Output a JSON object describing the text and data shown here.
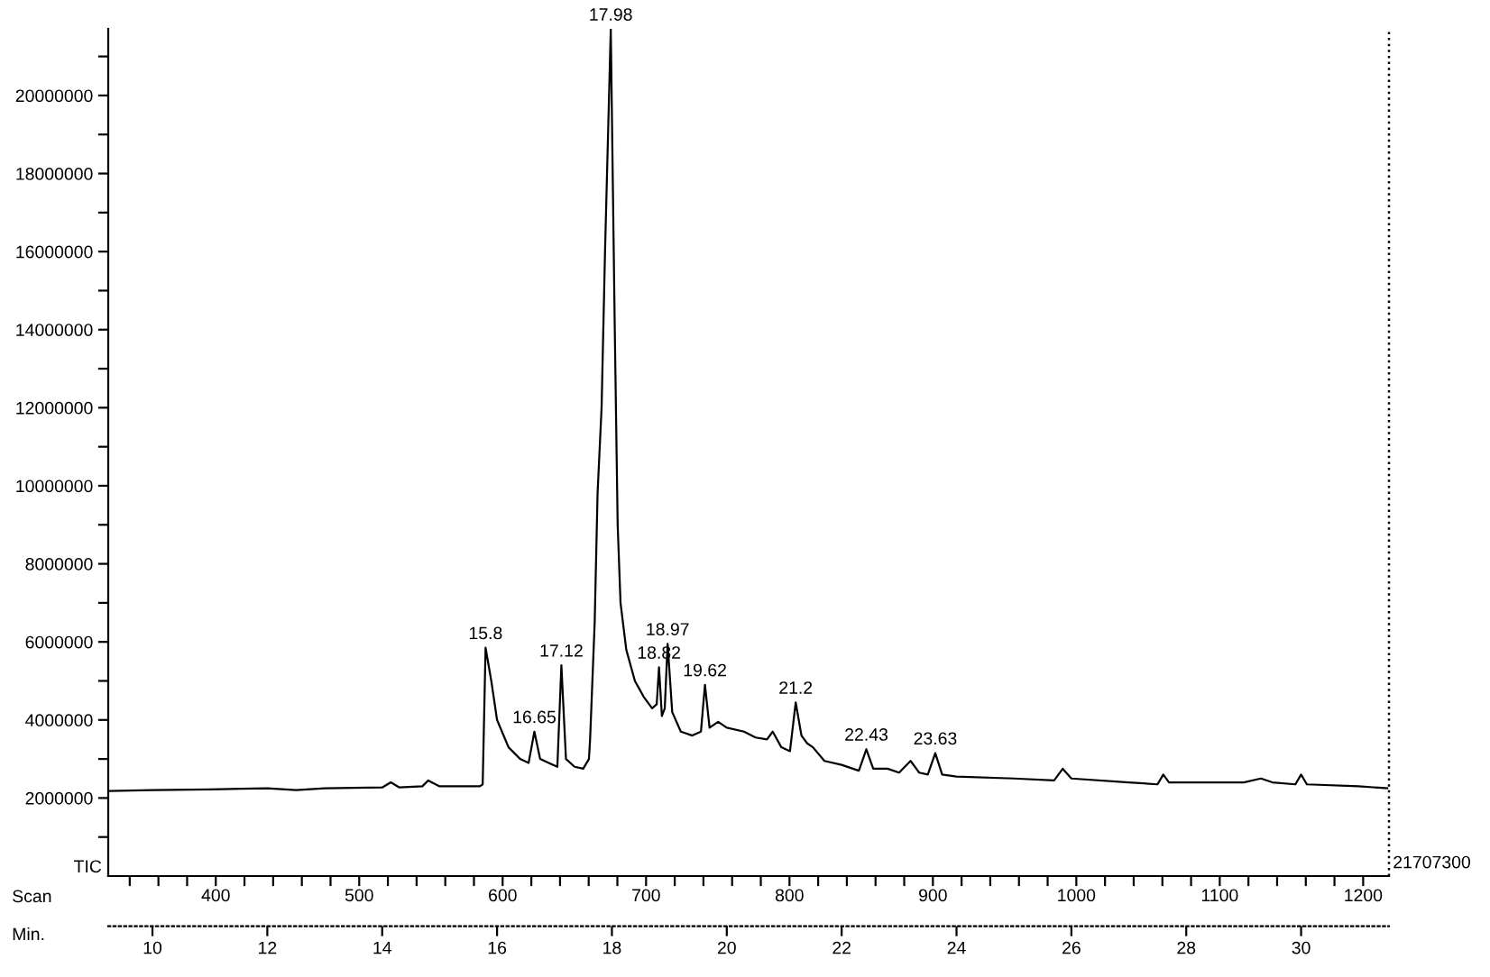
{
  "chart_data": {
    "type": "line",
    "ylabel": "TIC",
    "xlabel": "Min.",
    "x2label": "Scan",
    "x": [
      9.25,
      10,
      11,
      12,
      12.5,
      13,
      14,
      14.15,
      14.3,
      14.7,
      14.8,
      15,
      15.7,
      15.75,
      15.8,
      15.9,
      16.0,
      16.2,
      16.4,
      16.55,
      16.65,
      16.75,
      16.9,
      17.05,
      17.12,
      17.2,
      17.35,
      17.5,
      17.6,
      17.62,
      17.7,
      17.75,
      17.82,
      17.88,
      17.98,
      18.05,
      18.1,
      18.15,
      18.25,
      18.4,
      18.55,
      18.7,
      18.78,
      18.82,
      18.87,
      18.92,
      18.97,
      19.05,
      19.2,
      19.4,
      19.55,
      19.62,
      19.7,
      19.85,
      20.0,
      20.3,
      20.5,
      20.7,
      20.8,
      20.95,
      21.1,
      21.2,
      21.3,
      21.4,
      21.5,
      21.7,
      22.0,
      22.3,
      22.43,
      22.55,
      22.8,
      23.0,
      23.2,
      23.35,
      23.5,
      23.63,
      23.75,
      24.0,
      25.0,
      25.7,
      25.85,
      26.0,
      27.0,
      27.5,
      27.6,
      27.7,
      29.0,
      29.3,
      29.5,
      29.9,
      30.0,
      30.1,
      31.0,
      31.5
    ],
    "series": [
      {
        "color": "#000000",
        "values": [
          2180000,
          2200000,
          2220000,
          2250000,
          2200000,
          2250000,
          2270000,
          2400000,
          2270000,
          2300000,
          2450000,
          2300000,
          2300000,
          2350000,
          5850000,
          5000000,
          4000000,
          3300000,
          3000000,
          2900000,
          3700000,
          3000000,
          2900000,
          2800000,
          5400000,
          3000000,
          2800000,
          2750000,
          3000000,
          3500000,
          6500000,
          9800000,
          12000000,
          16000000,
          21700000,
          14000000,
          9000000,
          7000000,
          5800000,
          5000000,
          4600000,
          4300000,
          4400000,
          5350000,
          4100000,
          4300000,
          5950000,
          4200000,
          3700000,
          3600000,
          3700000,
          4900000,
          3800000,
          3950000,
          3800000,
          3700000,
          3550000,
          3500000,
          3700000,
          3300000,
          3200000,
          4450000,
          3600000,
          3400000,
          3300000,
          2950000,
          2850000,
          2700000,
          3250000,
          2750000,
          2750000,
          2650000,
          2950000,
          2650000,
          2600000,
          3150000,
          2600000,
          2550000,
          2500000,
          2450000,
          2750000,
          2500000,
          2400000,
          2350000,
          2600000,
          2400000,
          2400000,
          2500000,
          2400000,
          2350000,
          2600000,
          2350000,
          2300000,
          2250000
        ]
      }
    ],
    "xlim": [
      9.23,
      31.53
    ],
    "xticks": [
      10,
      12,
      14,
      16,
      18,
      20,
      22,
      24,
      26,
      28,
      30
    ],
    "x2lim": [
      325,
      1218
    ],
    "x2ticks": [
      {
        "value": 340,
        "label": null
      },
      {
        "value": 360,
        "label": null
      },
      {
        "value": 380,
        "label": null
      },
      400,
      {
        "value": 420,
        "label": null
      },
      {
        "value": 440,
        "label": null
      },
      {
        "value": 460,
        "label": null
      },
      {
        "value": 480,
        "label": null
      },
      500,
      {
        "value": 520,
        "label": null
      },
      {
        "value": 540,
        "label": null
      },
      {
        "value": 560,
        "label": null
      },
      {
        "value": 580,
        "label": null
      },
      600,
      {
        "value": 620,
        "label": null
      },
      {
        "value": 640,
        "label": null
      },
      {
        "value": 660,
        "label": null
      },
      {
        "value": 680,
        "label": null
      },
      700,
      {
        "value": 720,
        "label": null
      },
      {
        "value": 740,
        "label": null
      },
      {
        "value": 760,
        "label": null
      },
      {
        "value": 780,
        "label": null
      },
      800,
      {
        "value": 820,
        "label": null
      },
      {
        "value": 840,
        "label": null
      },
      {
        "value": 860,
        "label": null
      },
      {
        "value": 880,
        "label": null
      },
      900,
      {
        "value": 920,
        "label": null
      },
      {
        "value": 940,
        "label": null
      },
      {
        "value": 960,
        "label": null
      },
      {
        "value": 980,
        "label": null
      },
      1000,
      {
        "value": 1020,
        "label": null
      },
      {
        "value": 1040,
        "label": null
      },
      {
        "value": 1060,
        "label": null
      },
      {
        "value": 1080,
        "label": null
      },
      1100,
      {
        "value": 1120,
        "label": null
      },
      {
        "value": 1140,
        "label": null
      },
      {
        "value": 1160,
        "label": null
      },
      {
        "value": 1180,
        "label": null
      },
      1200
    ],
    "ylim": [
      0,
      21707300
    ],
    "yticks": [
      {
        "value": 1000000,
        "label": null
      },
      2000000,
      {
        "value": 3000000,
        "label": null
      },
      4000000,
      {
        "value": 5000000,
        "label": null
      },
      6000000,
      {
        "value": 7000000,
        "label": null
      },
      8000000,
      {
        "value": 9000000,
        "label": null
      },
      10000000,
      {
        "value": 11000000,
        "label": null
      },
      12000000,
      {
        "value": 13000000,
        "label": null
      },
      14000000,
      {
        "value": 15000000,
        "label": null
      },
      16000000,
      {
        "value": 17000000,
        "label": null
      },
      18000000,
      {
        "value": 19000000,
        "label": null
      },
      20000000,
      {
        "value": 21000000,
        "label": null
      }
    ],
    "ref_lines": [
      {
        "axis": "x",
        "value": 31.53,
        "line_style": "dotted",
        "color": "#000000"
      }
    ],
    "annotations": [
      "21707300",
      {
        "text": "15.8",
        "x": 15.8,
        "y": 5850000
      },
      {
        "text": "16.65",
        "x": 16.65,
        "y": 3700000
      },
      {
        "text": "17.12",
        "x": 17.12,
        "y": 5400000
      },
      {
        "text": "17.98",
        "x": 17.98,
        "y": 21700000
      },
      {
        "text": "18.82",
        "x": 18.82,
        "y": 5350000
      },
      {
        "text": "18.97",
        "x": 18.97,
        "y": 5950000
      },
      {
        "text": "19.62",
        "x": 19.62,
        "y": 4900000
      },
      {
        "text": "21.2",
        "x": 21.2,
        "y": 4450000
      },
      {
        "text": "22.43",
        "x": 22.43,
        "y": 3250000
      },
      {
        "text": "23.63",
        "x": 23.63,
        "y": 3150000
      }
    ],
    "grid": false,
    "legend": false
  }
}
